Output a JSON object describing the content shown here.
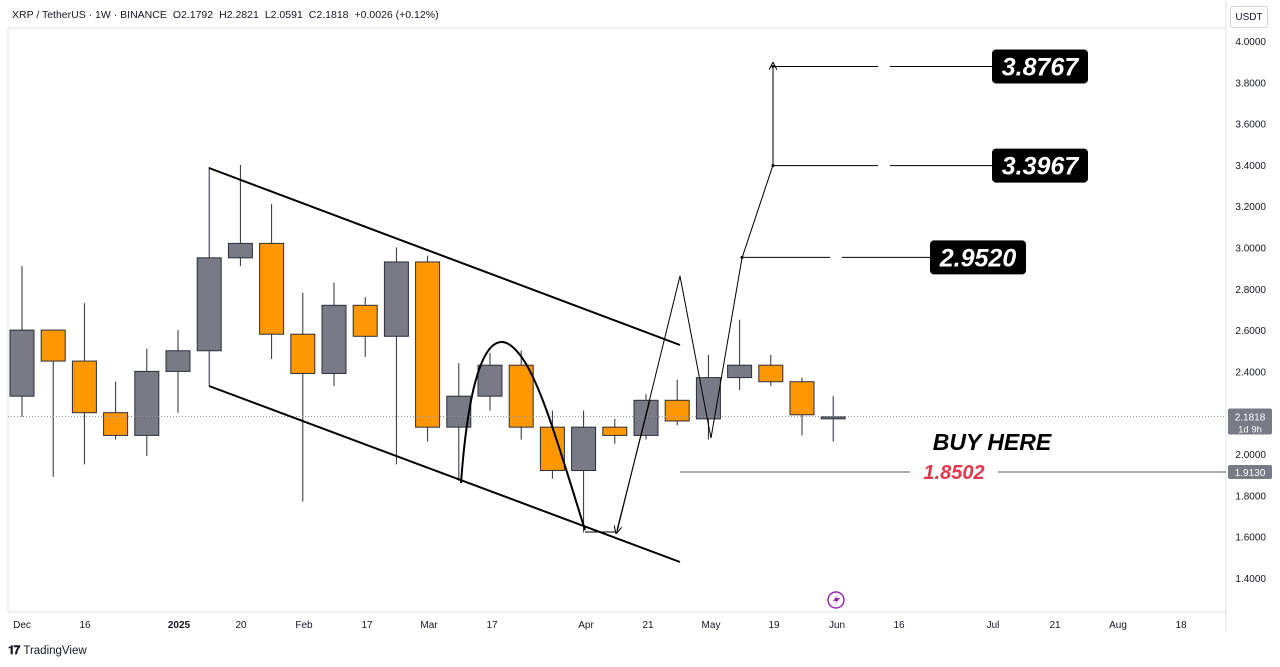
{
  "header": {
    "symbol": "XRP / TetherUS · 1W · BINANCE",
    "open": "O2.1792",
    "high": "H2.2821",
    "low": "L2.0591",
    "close": "C2.1818",
    "change": "+0.0026 (+0.12%)"
  },
  "unit_button": "USDT",
  "footer": {
    "brand": "TradingView",
    "logo_icon": "tradingview-logo-icon"
  },
  "colors": {
    "up": "#787b86",
    "down": "#ff9800",
    "red": "#e0394b",
    "dark": "#000000",
    "grid": "#d1d4dc"
  },
  "chart_data": {
    "type": "candlestick",
    "ylim": [
      1.3,
      4.1
    ],
    "y_ticks": [
      "4.0000",
      "3.8000",
      "3.6000",
      "3.4000",
      "3.2000",
      "3.0000",
      "2.8000",
      "2.6000",
      "2.4000",
      "2.2000",
      "2.0000",
      "1.8000",
      "1.6000",
      "1.4000"
    ],
    "x_ticks": [
      "Dec",
      "16",
      "2025",
      "20",
      "Feb",
      "17",
      "Mar",
      "17",
      "Apr",
      "21",
      "May",
      "19",
      "Jun",
      "16",
      "Jul",
      "21",
      "Aug",
      "18"
    ],
    "last_price": "2.1818",
    "countdown": "1d 9h",
    "level_label": "1.9130",
    "candles": [
      {
        "o": 2.28,
        "h": 2.91,
        "l": 2.18,
        "c": 2.6
      },
      {
        "o": 2.6,
        "h": 2.6,
        "l": 1.89,
        "c": 2.45
      },
      {
        "o": 2.45,
        "h": 2.73,
        "l": 1.95,
        "c": 2.2
      },
      {
        "o": 2.2,
        "h": 2.35,
        "l": 2.07,
        "c": 2.09
      },
      {
        "o": 2.09,
        "h": 2.51,
        "l": 1.99,
        "c": 2.4
      },
      {
        "o": 2.4,
        "h": 2.6,
        "l": 2.2,
        "c": 2.5
      },
      {
        "o": 2.5,
        "h": 3.39,
        "l": 2.33,
        "c": 2.95
      },
      {
        "o": 2.95,
        "h": 3.4,
        "l": 2.91,
        "c": 3.02
      },
      {
        "o": 3.02,
        "h": 3.21,
        "l": 2.46,
        "c": 2.58
      },
      {
        "o": 2.58,
        "h": 2.78,
        "l": 1.77,
        "c": 2.39
      },
      {
        "o": 2.39,
        "h": 2.83,
        "l": 2.33,
        "c": 2.72
      },
      {
        "o": 2.72,
        "h": 2.76,
        "l": 2.47,
        "c": 2.57
      },
      {
        "o": 2.57,
        "h": 3.0,
        "l": 1.95,
        "c": 2.93
      },
      {
        "o": 2.93,
        "h": 2.96,
        "l": 2.06,
        "c": 2.13
      },
      {
        "o": 2.13,
        "h": 2.44,
        "l": 1.87,
        "c": 2.28
      },
      {
        "o": 2.28,
        "h": 2.49,
        "l": 2.21,
        "c": 2.43
      },
      {
        "o": 2.43,
        "h": 2.5,
        "l": 2.07,
        "c": 2.13
      },
      {
        "o": 2.13,
        "h": 2.21,
        "l": 1.88,
        "c": 1.92
      },
      {
        "o": 1.92,
        "h": 2.21,
        "l": 1.62,
        "c": 2.13
      },
      {
        "o": 2.13,
        "h": 2.17,
        "l": 2.05,
        "c": 2.09
      },
      {
        "o": 2.09,
        "h": 2.29,
        "l": 2.07,
        "c": 2.26
      },
      {
        "o": 2.26,
        "h": 2.36,
        "l": 2.14,
        "c": 2.16
      },
      {
        "o": 2.17,
        "h": 2.48,
        "l": 2.07,
        "c": 2.37
      },
      {
        "o": 2.37,
        "h": 2.65,
        "l": 2.31,
        "c": 2.43
      },
      {
        "o": 2.43,
        "h": 2.48,
        "l": 2.33,
        "c": 2.35
      },
      {
        "o": 2.35,
        "h": 2.37,
        "l": 2.09,
        "c": 2.19
      },
      {
        "o": 2.18,
        "h": 2.28,
        "l": 2.06,
        "c": 2.18
      }
    ],
    "targets": [
      "3.8767",
      "3.3967",
      "2.9520"
    ],
    "entry": "1.8502",
    "entry_note": "BUY HERE"
  }
}
